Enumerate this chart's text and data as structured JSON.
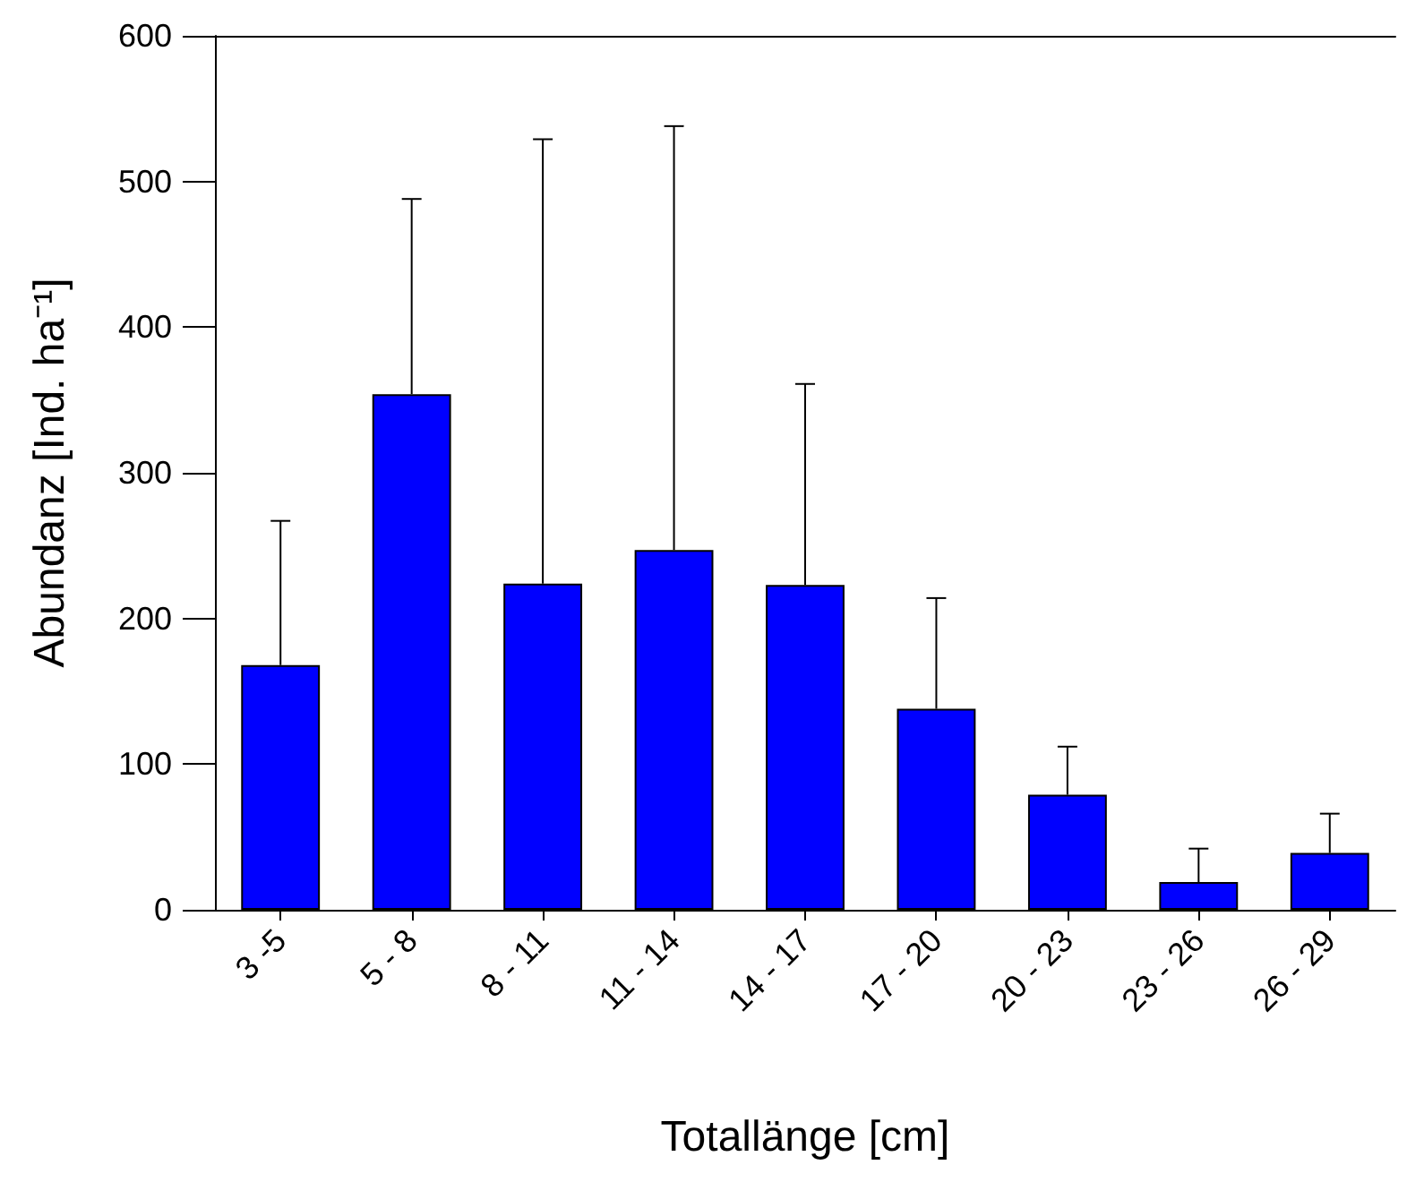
{
  "chart_data": {
    "type": "bar",
    "xlabel": "Totallänge [cm]",
    "ylabel": "Abundanz [Ind. ha⁻¹]",
    "categories": [
      "3 -5",
      "5 - 8",
      "8 - 11",
      "11 - 14",
      "14 - 17",
      "17 - 20",
      "20 - 23",
      "23 - 26",
      "26 - 29"
    ],
    "values": [
      168,
      354,
      224,
      247,
      223,
      138,
      79,
      19,
      39
    ],
    "errors": [
      [
        168,
        267
      ],
      [
        354,
        488
      ],
      [
        224,
        529
      ],
      [
        247,
        538
      ],
      [
        223,
        361
      ],
      [
        138,
        214
      ],
      [
        79,
        112
      ],
      [
        19,
        42
      ],
      [
        39,
        66
      ]
    ],
    "color": "#0000ff",
    "ylim": [
      0,
      600
    ],
    "yticks": [
      0,
      100,
      200,
      300,
      400,
      500,
      600
    ],
    "grid": false
  }
}
